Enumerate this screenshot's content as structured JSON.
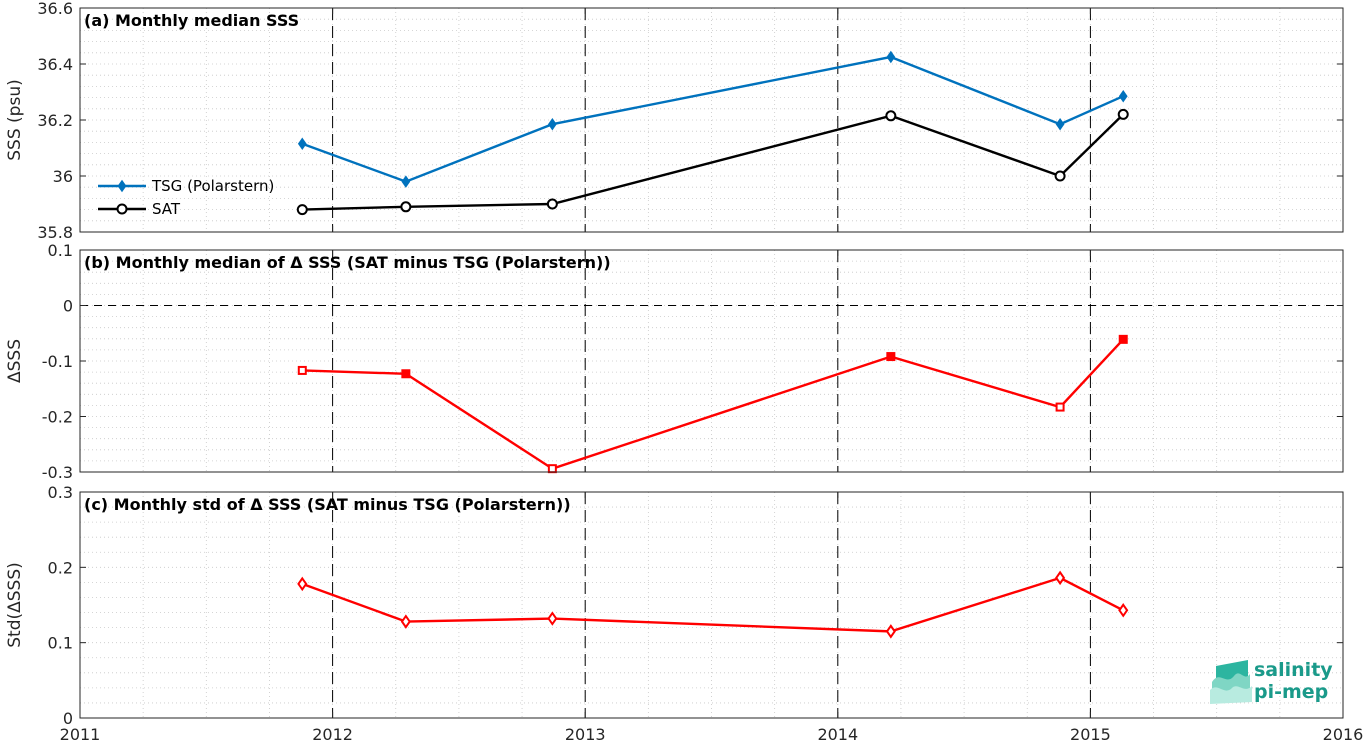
{
  "chart_data": [
    {
      "type": "line",
      "title": "(a) Monthly median SSS",
      "ylabel": "SSS (psu)",
      "xlim": [
        2011,
        2016
      ],
      "ylim": [
        35.8,
        36.6
      ],
      "yticks": [
        "35.8",
        "36",
        "36.2",
        "36.4",
        "36.6"
      ],
      "ytick_values": [
        35.8,
        36.0,
        36.2,
        36.4,
        36.6
      ],
      "grid": true,
      "legend_position": "left",
      "series": [
        {
          "name": "TSG (Polarstern)",
          "color": "#0072BD",
          "marker": "diamond",
          "x": [
            2011.88,
            2012.29,
            2012.87,
            2014.21,
            2014.88,
            2015.13
          ],
          "y": [
            36.115,
            35.98,
            36.185,
            36.425,
            36.185,
            36.285
          ]
        },
        {
          "name": "SAT",
          "color": "#000000",
          "marker": "circle",
          "x": [
            2011.88,
            2012.29,
            2012.87,
            2014.21,
            2014.88,
            2015.13
          ],
          "y": [
            35.88,
            35.89,
            35.9,
            36.215,
            36.0,
            36.22
          ]
        }
      ]
    },
    {
      "type": "line",
      "title": "(b) Monthly median of Δ SSS (SAT minus TSG (Polarstern))",
      "ylabel": "ΔSSS",
      "xlim": [
        2011,
        2016
      ],
      "ylim": [
        -0.3,
        0.1
      ],
      "yticks": [
        "-0.3",
        "-0.2",
        "-0.1",
        "0",
        "0.1"
      ],
      "ytick_values": [
        -0.3,
        -0.2,
        -0.1,
        0,
        0.1
      ],
      "grid": true,
      "zero_line": true,
      "series": [
        {
          "color": "#FF0000",
          "marker": "square",
          "x": [
            2011.88,
            2012.29,
            2012.87,
            2014.21,
            2014.88,
            2015.13
          ],
          "y": [
            -0.117,
            -0.123,
            -0.294,
            -0.092,
            -0.183,
            -0.061
          ]
        }
      ]
    },
    {
      "type": "line",
      "title": "(c) Monthly std of Δ SSS (SAT minus TSG (Polarstern))",
      "ylabel": "Std(ΔSSS)",
      "xlim": [
        2011,
        2016
      ],
      "ylim": [
        0,
        0.3
      ],
      "yticks": [
        "0",
        "0.1",
        "0.2",
        "0.3"
      ],
      "ytick_values": [
        0,
        0.1,
        0.2,
        0.3
      ],
      "xticks": [
        "2011",
        "2012",
        "2013",
        "2014",
        "2015",
        "2016"
      ],
      "xtick_values": [
        2011,
        2012,
        2013,
        2014,
        2015,
        2016
      ],
      "grid": true,
      "series": [
        {
          "color": "#FF0000",
          "marker": "diamond",
          "x": [
            2011.88,
            2012.29,
            2012.87,
            2014.21,
            2014.88,
            2015.13
          ],
          "y": [
            0.178,
            0.128,
            0.132,
            0.115,
            0.186,
            0.143
          ]
        }
      ]
    }
  ],
  "logo": {
    "line1": "salinity",
    "line2": "pi-mep",
    "color": "#1a9a8a"
  },
  "x_major_years": [
    2012,
    2013,
    2014,
    2015
  ]
}
